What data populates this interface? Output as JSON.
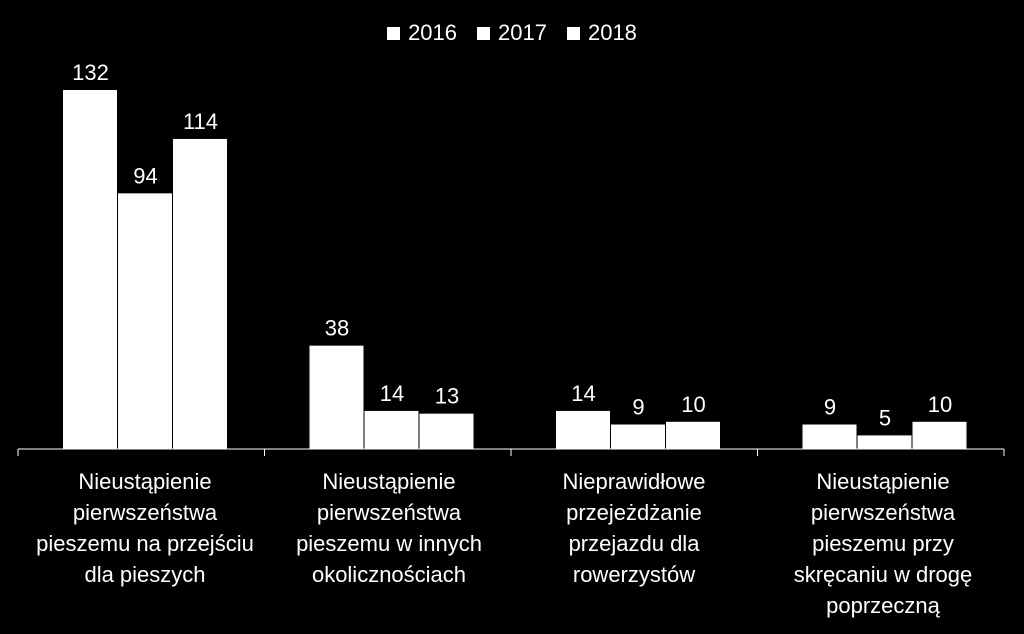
{
  "chart_data": {
    "type": "bar",
    "categories": [
      "Nieustąpienie pierwszeństwa pieszemu na przejściu dla pieszych",
      "Nieustąpienie pierwszeństwa pieszemu w innych okolicznościach",
      "Nieprawidłowe przejeżdżanie przejazdu dla rowerzystów",
      "Nieustąpienie pierwszeństwa pieszemu przy skręcaniu w drogę poprzeczną"
    ],
    "series": [
      {
        "name": "2016",
        "values": [
          132,
          38,
          14,
          9
        ]
      },
      {
        "name": "2017",
        "values": [
          94,
          14,
          9,
          5
        ]
      },
      {
        "name": "2018",
        "values": [
          114,
          13,
          10,
          10
        ]
      }
    ],
    "title": "",
    "xlabel": "",
    "ylabel": "",
    "ylim": [
      0,
      140
    ],
    "grid": false,
    "legend": "top-center",
    "colors": {
      "background": "#000000",
      "bars": "#ffffff",
      "text": "#ffffff"
    }
  }
}
